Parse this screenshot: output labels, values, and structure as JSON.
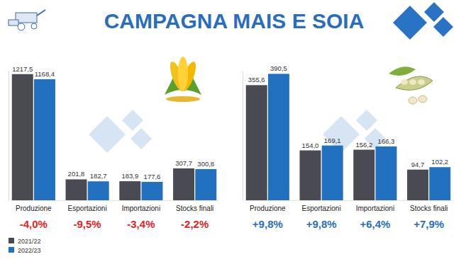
{
  "title": "CAMPAGNA MAIS E SOIA",
  "chart_data": [
    {
      "type": "bar",
      "categories": [
        "Produzione",
        "Esportazioni",
        "Importazioni",
        "Stocks finali"
      ],
      "series": [
        {
          "name": "2021/22",
          "color": "#4a4a52",
          "values": [
            1217.5,
            201.8,
            183.9,
            307.7
          ],
          "value_labels": [
            "1217,5",
            "201,8",
            "183,9",
            "307,7"
          ]
        },
        {
          "name": "2022/23",
          "color": "#2270c0",
          "values": [
            1168.4,
            182.7,
            177.6,
            300.8
          ],
          "value_labels": [
            "1168,4",
            "182,7",
            "177,6",
            "300,8"
          ]
        }
      ],
      "changes": [
        -4.0,
        -9.5,
        -3.4,
        -2.2
      ],
      "change_labels": [
        "-4,0%",
        "-9,5%",
        "-3,4%",
        "-2,2%"
      ],
      "ylim": [
        0,
        1250
      ],
      "data_labels": true,
      "tick_labels": "x",
      "legend": "bottom-left"
    },
    {
      "type": "bar",
      "categories": [
        "Produzione",
        "Esportazioni",
        "Importazioni",
        "Stocks finali"
      ],
      "series": [
        {
          "name": "2021/22",
          "color": "#4a4a52",
          "values": [
            355.6,
            154.0,
            156.2,
            94.7
          ],
          "value_labels": [
            "355,6",
            "154,0",
            "156,2",
            "94,7"
          ]
        },
        {
          "name": "2022/23",
          "color": "#2270c0",
          "values": [
            390.5,
            169.1,
            166.3,
            102.2
          ],
          "value_labels": [
            "390,5",
            "169,1",
            "166,3",
            "102,2"
          ]
        }
      ],
      "changes": [
        9.8,
        9.8,
        6.4,
        7.9
      ],
      "change_labels": [
        "+9,8%",
        "+9,8%",
        "+6,4%",
        "+7,9%"
      ],
      "ylim": [
        0,
        400
      ],
      "data_labels": true,
      "tick_labels": "x"
    }
  ]
}
